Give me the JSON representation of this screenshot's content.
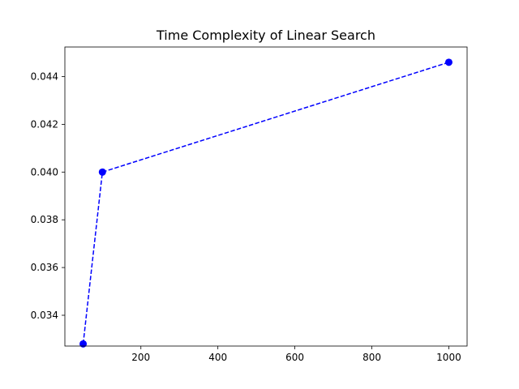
{
  "chart_data": {
    "type": "line",
    "title": "Time Complexity of Linear Search",
    "xlabel": "",
    "ylabel": "",
    "x": [
      50,
      100,
      1000
    ],
    "series": [
      {
        "values": [
          0.0328,
          0.04,
          0.0446
        ],
        "color": "#0000ff",
        "line_style": "dashed",
        "marker": "circle"
      }
    ],
    "xlim": [
      2.5,
      1047.5
    ],
    "ylim": [
      0.03271,
      0.04524
    ],
    "x_ticks": [
      200,
      400,
      600,
      800,
      1000
    ],
    "x_tick_labels": [
      "200",
      "400",
      "600",
      "800",
      "1000"
    ],
    "y_ticks": [
      0.034,
      0.036,
      0.038,
      0.04,
      0.042,
      0.044
    ],
    "y_tick_labels": [
      "0.034",
      "0.036",
      "0.038",
      "0.040",
      "0.042",
      "0.044"
    ],
    "grid": false,
    "legend": "none"
  }
}
